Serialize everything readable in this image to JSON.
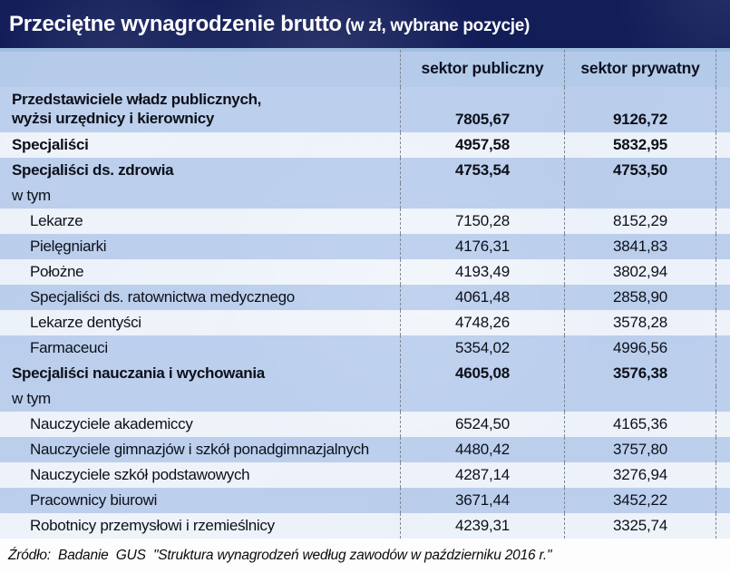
{
  "title": {
    "main": "Przeciętne wynagrodzenie brutto",
    "suffix": "(w zł, wybrane pozycje)"
  },
  "columns": {
    "public": "sektor publiczny",
    "private": "sektor prywatny"
  },
  "rows": [
    {
      "label": "Przedstawiciele władz publicznych,\nwyżsi urzędnicy i kierownicy",
      "public": "7805,67",
      "private": "9126,72",
      "style": "section",
      "shade": "blue",
      "two_line": true
    },
    {
      "label": "Specjaliści",
      "public": "4957,58",
      "private": "5832,95",
      "style": "section",
      "shade": "light"
    },
    {
      "label": "Specjaliści ds. zdrowia",
      "public": "4753,54",
      "private": "4753,50",
      "style": "section",
      "shade": "blue"
    },
    {
      "label": "w tym",
      "public": "",
      "private": "",
      "style": "subhead",
      "shade": "blue"
    },
    {
      "label": "Lekarze",
      "public": "7150,28",
      "private": "8152,29",
      "style": "item",
      "shade": "light"
    },
    {
      "label": "Pielęgniarki",
      "public": "4176,31",
      "private": "3841,83",
      "style": "item",
      "shade": "blue"
    },
    {
      "label": "Położne",
      "public": "4193,49",
      "private": "3802,94",
      "style": "item",
      "shade": "light"
    },
    {
      "label": "Specjaliści ds. ratownictwa medycznego",
      "public": "4061,48",
      "private": "2858,90",
      "style": "item",
      "shade": "blue"
    },
    {
      "label": "Lekarze dentyści",
      "public": "4748,26",
      "private": "3578,28",
      "style": "item",
      "shade": "light"
    },
    {
      "label": "Farmaceuci",
      "public": "5354,02",
      "private": "4996,56",
      "style": "item",
      "shade": "blue"
    },
    {
      "label": "Specjaliści nauczania i wychowania",
      "public": "4605,08",
      "private": "3576,38",
      "style": "section",
      "shade": "blue"
    },
    {
      "label": "w tym",
      "public": "",
      "private": "",
      "style": "subhead",
      "shade": "blue"
    },
    {
      "label": "Nauczyciele akademiccy",
      "public": "6524,50",
      "private": "4165,36",
      "style": "item",
      "shade": "light"
    },
    {
      "label": "Nauczyciele gimnazjów i szkół ponadgimnazjalnych",
      "public": "4480,42",
      "private": "3757,80",
      "style": "item",
      "shade": "blue"
    },
    {
      "label": "Nauczyciele szkół podstawowych",
      "public": "4287,14",
      "private": "3276,94",
      "style": "item",
      "shade": "light"
    },
    {
      "label": "Pracownicy biurowi",
      "public": "3671,44",
      "private": "3452,22",
      "style": "item",
      "shade": "blue"
    },
    {
      "label": "Robotnicy przemysłowi i rzemieślnicy",
      "public": "4239,31",
      "private": "3325,74",
      "style": "item",
      "shade": "light"
    }
  ],
  "footer": {
    "source": "Źródło:  Badanie  GUS  \"Struktura wynagrodzeń według zawodów w październiku 2016 r.\""
  },
  "colors": {
    "title_bg": "#131e59",
    "title_text": "#ffffff",
    "row_blue": "#c5d6ee",
    "row_light": "#eef3fa",
    "header_bg": "#b8cce8",
    "divider_dashed": "#7f8694",
    "text": "#0d1019"
  },
  "chart_data": {
    "type": "table",
    "title": "Przeciętne wynagrodzenie brutto (w zł, wybrane pozycje)",
    "categories": [
      "Przedstawiciele władz publicznych, wyżsi urzędnicy i kierownicy",
      "Specjaliści",
      "Specjaliści ds. zdrowia",
      "w tym",
      "Lekarze",
      "Pielęgniarki",
      "Położne",
      "Specjaliści ds. ratownictwa medycznego",
      "Lekarze dentyści",
      "Farmaceuci",
      "Specjaliści nauczania i wychowania",
      "w tym",
      "Nauczyciele akademiccy",
      "Nauczyciele gimnazjów i szkół ponadgimnazjalnych",
      "Nauczyciele szkół podstawowych",
      "Pracownicy biurowi",
      "Robotnicy przemysłowi i rzemieślnicy"
    ],
    "series": [
      {
        "name": "sektor publiczny",
        "values": [
          7805.67,
          4957.58,
          4753.54,
          null,
          7150.28,
          4176.31,
          4193.49,
          4061.48,
          4748.26,
          5354.02,
          4605.08,
          null,
          6524.5,
          4480.42,
          4287.14,
          3671.44,
          4239.31
        ]
      },
      {
        "name": "sektor prywatny",
        "values": [
          9126.72,
          5832.95,
          4753.5,
          null,
          8152.29,
          3841.83,
          3802.94,
          2858.9,
          3578.28,
          4996.56,
          3576.38,
          null,
          4165.36,
          3757.8,
          3276.94,
          3452.22,
          3325.74
        ]
      }
    ],
    "source": "Badanie GUS \"Struktura wynagrodzeń według zawodów w październiku 2016 r.\""
  }
}
